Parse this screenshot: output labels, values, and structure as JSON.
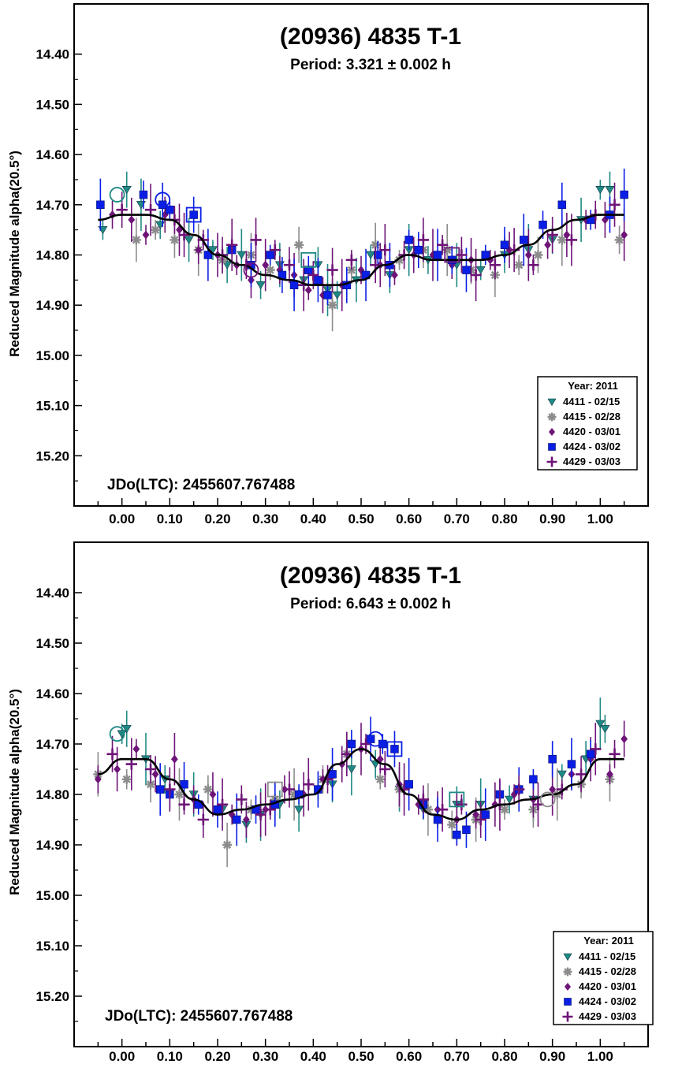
{
  "colors": {
    "teal": "#1f8a84",
    "gray": "#8c8c8c",
    "purple": "#6e1478",
    "blue": "#0a1ee6",
    "fit": "#000000",
    "background": "#ffffff"
  },
  "chart_data": [
    {
      "type": "scatter",
      "title": "(20936) 4835 T-1",
      "subtitle": "Period: 3.321 ± 0.002 h",
      "ylabel": "Reduced Magnitude alpha(20.5°)",
      "xlabel": "",
      "annotation": "JDo(LTC): 2455607.767488",
      "xlim": [
        -0.1,
        1.1
      ],
      "ylim": [
        15.3,
        14.3
      ],
      "y_inverted": true,
      "x_ticks": [
        "0.00",
        "0.10",
        "0.20",
        "0.30",
        "0.40",
        "0.50",
        "0.60",
        "0.70",
        "0.80",
        "0.90",
        "1.00"
      ],
      "y_ticks": [
        "14.40",
        "14.50",
        "14.60",
        "14.70",
        "14.80",
        "14.90",
        "15.00",
        "15.10",
        "15.20"
      ],
      "legend": {
        "title": "Year: 2011",
        "position": "bottom-right",
        "entries": [
          "4411 - 02/15",
          "4415 - 02/28",
          "4420 - 03/01",
          "4424 - 03/02",
          "4429 - 03/03"
        ]
      },
      "fit_curve": {
        "x": [
          -0.05,
          0.0,
          0.05,
          0.1,
          0.15,
          0.2,
          0.25,
          0.3,
          0.35,
          0.4,
          0.45,
          0.5,
          0.55,
          0.6,
          0.65,
          0.7,
          0.75,
          0.8,
          0.85,
          0.9,
          0.95,
          1.0,
          1.05
        ],
        "y": [
          14.73,
          14.72,
          14.72,
          14.73,
          14.76,
          14.8,
          14.82,
          14.84,
          14.85,
          14.86,
          14.86,
          14.85,
          14.82,
          14.8,
          14.81,
          14.81,
          14.81,
          14.8,
          14.78,
          14.75,
          14.73,
          14.72,
          14.72
        ]
      },
      "series": [
        {
          "name": "4411 - 02/15",
          "marker": "triangle-down",
          "color": "teal",
          "x": [
            -0.04,
            0.01,
            0.04,
            0.08,
            0.14,
            0.19,
            0.22,
            0.25,
            0.29,
            0.33,
            0.38,
            0.41,
            0.43,
            0.45,
            0.49,
            0.52,
            0.56,
            0.6,
            0.64,
            0.7,
            0.75,
            0.8,
            0.85,
            0.9,
            0.96,
            1.0,
            1.02
          ],
          "y": [
            14.75,
            14.67,
            14.7,
            14.74,
            14.77,
            14.79,
            14.82,
            14.8,
            14.86,
            14.82,
            14.85,
            14.82,
            14.87,
            14.88,
            14.85,
            14.8,
            14.84,
            14.79,
            14.81,
            14.82,
            14.83,
            14.8,
            14.79,
            14.77,
            14.73,
            14.67,
            14.67
          ]
        },
        {
          "name": "4415 - 02/28",
          "marker": "asterisk",
          "color": "gray",
          "x": [
            0.03,
            0.07,
            0.11,
            0.16,
            0.21,
            0.27,
            0.31,
            0.37,
            0.44,
            0.48,
            0.53,
            0.58,
            0.63,
            0.68,
            0.73,
            0.78,
            0.83,
            0.87,
            0.92,
            1.04
          ],
          "y": [
            14.77,
            14.75,
            14.77,
            14.79,
            14.81,
            14.8,
            14.83,
            14.78,
            14.9,
            14.83,
            14.78,
            14.81,
            14.79,
            14.79,
            14.83,
            14.84,
            14.82,
            14.8,
            14.77,
            14.77
          ]
        },
        {
          "name": "4420 - 03/01",
          "marker": "diamond",
          "color": "purple",
          "x": [
            -0.02,
            0.02,
            0.05,
            0.09,
            0.12,
            0.16,
            0.2,
            0.24,
            0.27,
            0.3,
            0.33,
            0.36,
            0.39,
            0.42,
            0.46,
            0.5,
            0.54,
            0.57,
            0.61,
            0.65,
            0.69,
            0.73,
            0.77,
            0.81,
            0.85,
            0.89,
            0.93,
            0.97,
            1.01,
            1.05
          ],
          "y": [
            14.72,
            14.73,
            14.76,
            14.72,
            14.75,
            14.79,
            14.8,
            14.82,
            14.85,
            14.82,
            14.83,
            14.84,
            14.87,
            14.88,
            14.86,
            14.83,
            14.82,
            14.84,
            14.8,
            14.8,
            14.82,
            14.81,
            14.81,
            14.79,
            14.8,
            14.78,
            14.76,
            14.73,
            14.73,
            14.76
          ]
        },
        {
          "name": "4424 - 03/02",
          "marker": "square",
          "color": "blue",
          "x": [
            -0.045,
            0.045,
            0.085,
            0.1,
            0.15,
            0.18,
            0.23,
            0.27,
            0.31,
            0.335,
            0.36,
            0.39,
            0.41,
            0.43,
            0.47,
            0.51,
            0.535,
            0.56,
            0.6,
            0.62,
            0.66,
            0.69,
            0.72,
            0.76,
            0.8,
            0.84,
            0.88,
            0.92,
            0.98,
            1.02,
            1.05
          ],
          "y": [
            14.7,
            14.68,
            14.7,
            14.71,
            14.72,
            14.8,
            14.79,
            14.82,
            14.8,
            14.84,
            14.86,
            14.83,
            14.85,
            14.88,
            14.86,
            14.84,
            14.8,
            14.82,
            14.77,
            14.79,
            14.8,
            14.81,
            14.83,
            14.8,
            14.78,
            14.77,
            14.74,
            14.7,
            14.73,
            14.72,
            14.68
          ]
        },
        {
          "name": "4429 - 03/03",
          "marker": "plus",
          "color": "purple",
          "x": [
            0.0,
            0.06,
            0.11,
            0.13,
            0.17,
            0.21,
            0.23,
            0.26,
            0.28,
            0.32,
            0.35,
            0.38,
            0.4,
            0.44,
            0.48,
            0.53,
            0.55,
            0.59,
            0.63,
            0.67,
            0.71,
            0.74,
            0.78,
            0.82,
            0.86,
            0.9,
            0.94,
            0.99,
            1.03
          ],
          "y": [
            14.71,
            14.71,
            14.73,
            14.76,
            14.77,
            14.8,
            14.78,
            14.82,
            14.77,
            14.79,
            14.82,
            14.86,
            14.84,
            14.83,
            14.81,
            14.82,
            14.79,
            14.8,
            14.77,
            14.78,
            14.8,
            14.84,
            14.82,
            14.79,
            14.82,
            14.76,
            14.77,
            14.72,
            14.7
          ]
        }
      ],
      "circled_points": [
        {
          "x": -0.01,
          "y": 14.68,
          "shape": "circle",
          "color": "teal"
        },
        {
          "x": 0.085,
          "y": 14.69,
          "shape": "circle",
          "color": "blue"
        },
        {
          "x": 0.15,
          "y": 14.72,
          "shape": "square",
          "color": "blue"
        },
        {
          "x": 0.27,
          "y": 14.83,
          "shape": "circle",
          "color": "purple"
        },
        {
          "x": 0.39,
          "y": 14.81,
          "shape": "square",
          "color": "teal"
        },
        {
          "x": 0.69,
          "y": 14.8,
          "shape": "square",
          "color": "purple"
        }
      ]
    },
    {
      "type": "scatter",
      "title": "(20936) 4835 T-1",
      "subtitle": "Period: 6.643 ± 0.002 h",
      "ylabel": "Reduced Magnitude alpha(20.5°)",
      "xlabel": "",
      "annotation": "JDo(LTC): 2455607.767488",
      "xlim": [
        -0.1,
        1.1
      ],
      "ylim": [
        15.3,
        14.3
      ],
      "y_inverted": true,
      "x_ticks": [
        "0.00",
        "0.10",
        "0.20",
        "0.30",
        "0.40",
        "0.50",
        "0.60",
        "0.70",
        "0.80",
        "0.90",
        "1.00"
      ],
      "y_ticks": [
        "14.40",
        "14.50",
        "14.60",
        "14.70",
        "14.80",
        "14.90",
        "15.00",
        "15.10",
        "15.20"
      ],
      "legend": {
        "title": "Year: 2011",
        "position": "bottom-right",
        "entries": [
          "4411 - 02/15",
          "4415 - 02/28",
          "4420 - 03/01",
          "4424 - 03/02",
          "4429 - 03/03"
        ]
      },
      "fit_curve": {
        "x": [
          -0.05,
          0.0,
          0.05,
          0.1,
          0.15,
          0.2,
          0.25,
          0.3,
          0.35,
          0.4,
          0.45,
          0.5,
          0.55,
          0.6,
          0.65,
          0.7,
          0.75,
          0.8,
          0.85,
          0.9,
          0.95,
          1.0,
          1.05
        ],
        "y": [
          14.76,
          14.73,
          14.73,
          14.77,
          14.81,
          14.84,
          14.83,
          14.82,
          14.81,
          14.8,
          14.74,
          14.71,
          14.74,
          14.8,
          14.84,
          14.85,
          14.83,
          14.82,
          14.81,
          14.8,
          14.78,
          14.73,
          14.73
        ]
      },
      "series": [
        {
          "name": "4411 - 02/15",
          "marker": "triangle-down",
          "color": "teal",
          "x": [
            0.0,
            0.01,
            0.05,
            0.09,
            0.15,
            0.21,
            0.26,
            0.29,
            0.33,
            0.37,
            0.41,
            0.44,
            0.48,
            0.53,
            0.58,
            0.63,
            0.7,
            0.75,
            0.81,
            0.86,
            0.92,
            0.97,
            1.0,
            1.01
          ],
          "y": [
            14.68,
            14.67,
            14.73,
            14.77,
            14.8,
            14.83,
            14.86,
            14.84,
            14.82,
            14.83,
            14.79,
            14.78,
            14.75,
            14.74,
            14.79,
            14.83,
            14.82,
            14.82,
            14.81,
            14.81,
            14.76,
            14.73,
            14.66,
            14.67
          ]
        },
        {
          "name": "4415 - 02/28",
          "marker": "asterisk",
          "color": "gray",
          "x": [
            -0.05,
            0.01,
            0.06,
            0.12,
            0.18,
            0.22,
            0.27,
            0.32,
            0.36,
            0.42,
            0.47,
            0.54,
            0.58,
            0.64,
            0.69,
            0.74,
            0.8,
            0.86,
            0.91,
            0.96,
            1.02
          ],
          "y": [
            14.76,
            14.77,
            14.78,
            14.8,
            14.79,
            14.9,
            14.83,
            14.81,
            14.8,
            14.77,
            14.72,
            14.77,
            14.79,
            14.83,
            14.86,
            14.85,
            14.83,
            14.83,
            14.8,
            14.78,
            14.77
          ]
        },
        {
          "name": "4420 - 03/01",
          "marker": "diamond",
          "color": "purple",
          "x": [
            -0.05,
            -0.01,
            0.03,
            0.07,
            0.11,
            0.15,
            0.19,
            0.23,
            0.26,
            0.3,
            0.34,
            0.38,
            0.42,
            0.46,
            0.5,
            0.54,
            0.58,
            0.62,
            0.66,
            0.7,
            0.74,
            0.78,
            0.82,
            0.86,
            0.9,
            0.94,
            0.98,
            1.02,
            1.05
          ],
          "y": [
            14.77,
            14.75,
            14.71,
            14.76,
            14.73,
            14.81,
            14.8,
            14.84,
            14.85,
            14.83,
            14.79,
            14.8,
            14.77,
            14.74,
            14.71,
            14.73,
            14.78,
            14.82,
            14.83,
            14.85,
            14.84,
            14.82,
            14.8,
            14.81,
            14.79,
            14.76,
            14.73,
            14.76,
            14.69
          ]
        },
        {
          "name": "4424 - 03/02",
          "marker": "square",
          "color": "blue",
          "x": [
            0.08,
            0.1,
            0.13,
            0.16,
            0.2,
            0.24,
            0.28,
            0.32,
            0.37,
            0.41,
            0.44,
            0.48,
            0.52,
            0.545,
            0.57,
            0.6,
            0.63,
            0.66,
            0.7,
            0.72,
            0.76,
            0.79,
            0.83,
            0.86,
            0.9,
            0.94,
            0.98
          ],
          "y": [
            14.79,
            14.8,
            14.78,
            14.82,
            14.83,
            14.85,
            14.83,
            14.82,
            14.8,
            14.79,
            14.76,
            14.7,
            14.69,
            14.7,
            14.71,
            14.78,
            14.82,
            14.85,
            14.88,
            14.87,
            14.84,
            14.8,
            14.79,
            14.77,
            14.73,
            14.74,
            14.72
          ]
        },
        {
          "name": "4429 - 03/03",
          "marker": "plus",
          "color": "purple",
          "x": [
            -0.02,
            0.02,
            0.06,
            0.1,
            0.13,
            0.17,
            0.21,
            0.25,
            0.29,
            0.31,
            0.35,
            0.39,
            0.43,
            0.47,
            0.51,
            0.55,
            0.59,
            0.63,
            0.67,
            0.71,
            0.75,
            0.79,
            0.83,
            0.87,
            0.92,
            0.96,
            0.99,
            1.03
          ],
          "y": [
            14.72,
            14.74,
            14.75,
            14.79,
            14.82,
            14.85,
            14.82,
            14.81,
            14.84,
            14.83,
            14.79,
            14.78,
            14.77,
            14.72,
            14.7,
            14.75,
            14.79,
            14.81,
            14.83,
            14.82,
            14.85,
            14.82,
            14.79,
            14.82,
            14.79,
            14.76,
            14.71,
            14.72
          ]
        }
      ],
      "circled_points": [
        {
          "x": -0.01,
          "y": 14.68,
          "shape": "circle",
          "color": "teal"
        },
        {
          "x": 0.32,
          "y": 14.79,
          "shape": "square",
          "color": "gray"
        },
        {
          "x": 0.53,
          "y": 14.69,
          "shape": "circle",
          "color": "blue"
        },
        {
          "x": 0.57,
          "y": 14.71,
          "shape": "square",
          "color": "blue"
        },
        {
          "x": 0.7,
          "y": 14.81,
          "shape": "square",
          "color": "teal"
        },
        {
          "x": 0.89,
          "y": 14.81,
          "shape": "circle",
          "color": "gray"
        }
      ]
    }
  ]
}
